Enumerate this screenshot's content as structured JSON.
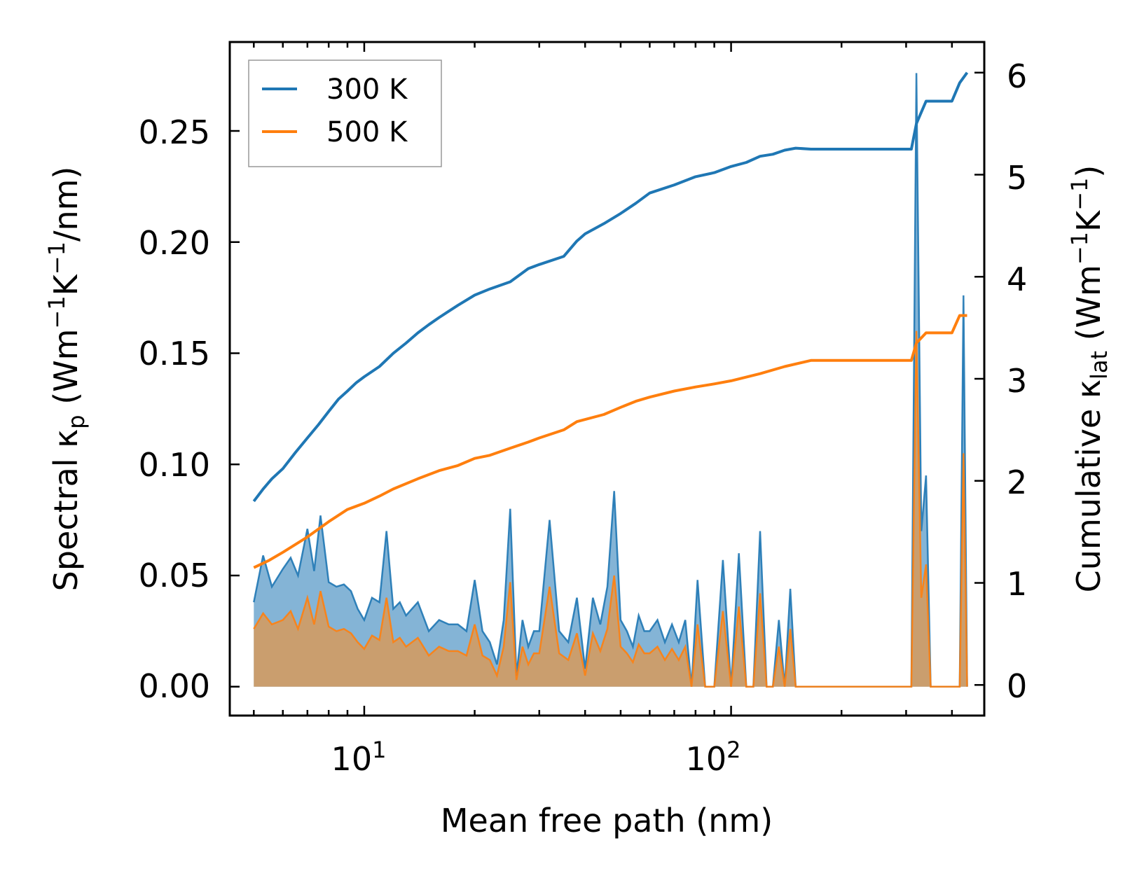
{
  "chart_data": {
    "type": "line",
    "x_scale": "log",
    "xlabel": "Mean free path (nm)",
    "xlim": [
      4.3,
      490
    ],
    "x_ticks": [
      {
        "value": 10,
        "base": "10",
        "exp": "1"
      },
      {
        "value": 100,
        "base": "10",
        "exp": "2"
      }
    ],
    "ylabel_left": {
      "pre": "Spectral κ",
      "sub": "p",
      "mid": " (Wm",
      "sup1": "−1",
      "mid2": "K",
      "sup2": "−1",
      "post": "/nm)"
    },
    "ylim_left": [
      -0.013,
      0.29
    ],
    "y_ticks_left": [
      "0.00",
      "0.05",
      "0.10",
      "0.15",
      "0.20",
      "0.25"
    ],
    "ylabel_right": {
      "pre": "Cumulative κ",
      "sub": "lat",
      "mid": " (Wm",
      "sup1": "−1",
      "mid2": "K",
      "sup2": "−1",
      "post": ")"
    },
    "ylim_right": [
      -0.3,
      6.3
    ],
    "y_ticks_right": [
      "0",
      "1",
      "2",
      "3",
      "4",
      "5",
      "6"
    ],
    "legend": {
      "position": "top-left",
      "entries": [
        "300 K",
        "500 K"
      ]
    },
    "colors": {
      "300 K": "#1f77b4",
      "500 K": "#ff7f0e",
      "fill_300": "#1f77b4",
      "fill_500": "#d69a5c"
    },
    "series": [
      {
        "name": "300 K",
        "kind": "cumulative",
        "axis": "right",
        "x": [
          5,
          5.3,
          5.6,
          6,
          6.5,
          7,
          7.5,
          8,
          8.5,
          9,
          9.5,
          10,
          11,
          12,
          13,
          14,
          15,
          16,
          18,
          20,
          22,
          25,
          28,
          30,
          35,
          38,
          40,
          45,
          50,
          55,
          60,
          70,
          80,
          90,
          100,
          110,
          120,
          130,
          140,
          150,
          165,
          200,
          250,
          310,
          320,
          340,
          400,
          420,
          440
        ],
        "values": [
          1.8,
          1.92,
          2.02,
          2.12,
          2.28,
          2.42,
          2.55,
          2.68,
          2.8,
          2.88,
          2.96,
          3.02,
          3.12,
          3.25,
          3.35,
          3.45,
          3.53,
          3.6,
          3.72,
          3.82,
          3.88,
          3.95,
          4.08,
          4.12,
          4.2,
          4.35,
          4.42,
          4.52,
          4.62,
          4.72,
          4.82,
          4.9,
          4.98,
          5.02,
          5.08,
          5.12,
          5.18,
          5.2,
          5.24,
          5.26,
          5.25,
          5.25,
          5.25,
          5.25,
          5.5,
          5.72,
          5.72,
          5.9,
          6.0
        ]
      },
      {
        "name": "500 K",
        "kind": "cumulative",
        "axis": "right",
        "x": [
          5,
          5.5,
          6,
          7,
          8,
          9,
          10,
          11,
          12,
          14,
          16,
          18,
          20,
          22,
          25,
          28,
          30,
          35,
          38,
          45,
          50,
          55,
          60,
          70,
          80,
          90,
          100,
          120,
          140,
          165,
          200,
          250,
          310,
          320,
          340,
          400,
          420,
          440
        ],
        "values": [
          1.15,
          1.22,
          1.3,
          1.45,
          1.6,
          1.72,
          1.78,
          1.85,
          1.92,
          2.02,
          2.1,
          2.15,
          2.22,
          2.25,
          2.32,
          2.38,
          2.42,
          2.5,
          2.58,
          2.65,
          2.72,
          2.78,
          2.82,
          2.88,
          2.92,
          2.95,
          2.98,
          3.05,
          3.12,
          3.18,
          3.18,
          3.18,
          3.18,
          3.35,
          3.45,
          3.45,
          3.62,
          3.62
        ]
      },
      {
        "name": "300 K spectral",
        "kind": "spectral",
        "axis": "left",
        "x": [
          5,
          5.3,
          5.6,
          6,
          6.3,
          6.6,
          7,
          7.3,
          7.6,
          8,
          8.4,
          8.8,
          9.2,
          9.6,
          10,
          10.5,
          11,
          11.5,
          12,
          12.5,
          13,
          14,
          15,
          16,
          17,
          18,
          19,
          20,
          21,
          22,
          23,
          24,
          25,
          26,
          27,
          28,
          29,
          30,
          32,
          34,
          36,
          38,
          40,
          42,
          44,
          46,
          48,
          50,
          52,
          54,
          56,
          58,
          60,
          63,
          66,
          69,
          72,
          75,
          78,
          81,
          85,
          90,
          95,
          100,
          105,
          110,
          115,
          120,
          125,
          130,
          135,
          140,
          145,
          150,
          155,
          160,
          200,
          250,
          300,
          310,
          320,
          330,
          340,
          350,
          400,
          410,
          420,
          430,
          440
        ],
        "values": [
          0.038,
          0.059,
          0.045,
          0.053,
          0.058,
          0.05,
          0.071,
          0.052,
          0.077,
          0.047,
          0.045,
          0.046,
          0.043,
          0.035,
          0.03,
          0.04,
          0.038,
          0.07,
          0.035,
          0.038,
          0.032,
          0.038,
          0.025,
          0.03,
          0.028,
          0.028,
          0.025,
          0.048,
          0.025,
          0.02,
          0.01,
          0.03,
          0.08,
          0.005,
          0.03,
          0.018,
          0.025,
          0.025,
          0.075,
          0.025,
          0.02,
          0.04,
          0.008,
          0.04,
          0.028,
          0.045,
          0.088,
          0.03,
          0.025,
          0.018,
          0.032,
          0.025,
          0.025,
          0.03,
          0.02,
          0.028,
          0.02,
          0.03,
          0.0,
          0.048,
          0.0,
          0.0,
          0.057,
          0.0,
          0.06,
          0.0,
          0.0,
          0.07,
          0.0,
          0.0,
          0.03,
          0.0,
          0.044,
          0.0,
          0.0,
          0.0,
          0.0,
          0.0,
          0.0,
          0.0,
          0.276,
          0.07,
          0.095,
          0.0,
          0.0,
          0.0,
          0.0,
          0.176,
          0.0
        ]
      },
      {
        "name": "500 K spectral",
        "kind": "spectral",
        "axis": "left",
        "x": [
          5,
          5.3,
          5.6,
          6,
          6.3,
          6.6,
          7,
          7.3,
          7.6,
          8,
          8.4,
          8.8,
          9.2,
          9.6,
          10,
          10.5,
          11,
          11.5,
          12,
          12.5,
          13,
          14,
          15,
          16,
          17,
          18,
          19,
          20,
          21,
          22,
          23,
          24,
          25,
          26,
          27,
          28,
          29,
          30,
          32,
          34,
          36,
          38,
          40,
          42,
          44,
          46,
          48,
          50,
          52,
          54,
          56,
          58,
          60,
          63,
          66,
          69,
          72,
          75,
          78,
          81,
          85,
          90,
          95,
          100,
          105,
          110,
          115,
          120,
          125,
          130,
          135,
          140,
          145,
          150,
          155,
          160,
          200,
          250,
          300,
          310,
          320,
          330,
          340,
          350,
          400,
          410,
          420,
          430,
          440
        ],
        "values": [
          0.026,
          0.033,
          0.028,
          0.03,
          0.034,
          0.026,
          0.04,
          0.028,
          0.043,
          0.027,
          0.025,
          0.026,
          0.024,
          0.02,
          0.017,
          0.023,
          0.021,
          0.04,
          0.02,
          0.022,
          0.018,
          0.022,
          0.014,
          0.018,
          0.016,
          0.016,
          0.014,
          0.028,
          0.014,
          0.012,
          0.005,
          0.018,
          0.047,
          0.003,
          0.018,
          0.01,
          0.015,
          0.015,
          0.045,
          0.015,
          0.012,
          0.024,
          0.005,
          0.024,
          0.016,
          0.026,
          0.05,
          0.018,
          0.015,
          0.011,
          0.019,
          0.015,
          0.015,
          0.018,
          0.012,
          0.017,
          0.012,
          0.018,
          0.0,
          0.028,
          0.0,
          0.0,
          0.034,
          0.0,
          0.036,
          0.0,
          0.0,
          0.042,
          0.0,
          0.0,
          0.018,
          0.0,
          0.026,
          0.0,
          0.0,
          0.0,
          0.0,
          0.0,
          0.0,
          0.0,
          0.16,
          0.04,
          0.055,
          0.0,
          0.0,
          0.0,
          0.0,
          0.105,
          0.0
        ]
      }
    ]
  }
}
